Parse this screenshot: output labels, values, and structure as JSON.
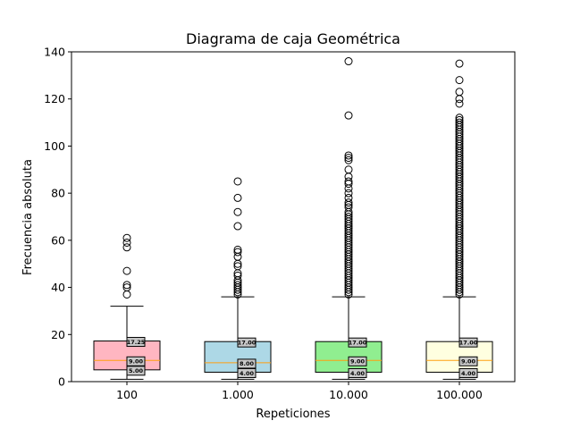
{
  "chart_data": {
    "type": "box",
    "title": "Diagrama de caja Geométrica",
    "xlabel": "Repeticiones",
    "ylabel": "Frecuencia absoluta",
    "ylim": [
      0,
      140
    ],
    "yticks": [
      0,
      20,
      40,
      60,
      80,
      100,
      120,
      140
    ],
    "grid": false,
    "categories": [
      "100",
      "1.000",
      "10.000",
      "100.000"
    ],
    "box_colors": [
      "#ffb6c1",
      "#add8e6",
      "#90ee90",
      "#ffffe0"
    ],
    "median_color": "#ff9f0f",
    "boxes": [
      {
        "q1": 5.0,
        "median": 9.0,
        "q3": 17.25,
        "whisker_low": 1,
        "whisker_high": 32,
        "q1_label": "5.00",
        "median_label": "9.00",
        "q3_label": "17.25",
        "outliers": [
          37,
          40,
          41,
          47,
          57,
          59,
          61
        ]
      },
      {
        "q1": 4.0,
        "median": 8.0,
        "q3": 17.0,
        "whisker_low": 1,
        "whisker_high": 36,
        "q1_label": "4.00",
        "median_label": "8.00",
        "q3_label": "17.00",
        "outliers": [
          37,
          38,
          39,
          40,
          41,
          42,
          43,
          45,
          46,
          49,
          50,
          53,
          55,
          56,
          66,
          72,
          78,
          85
        ]
      },
      {
        "q1": 4.0,
        "median": 9.0,
        "q3": 17.0,
        "whisker_low": 1,
        "whisker_high": 36,
        "q1_label": "4.00",
        "median_label": "9.00",
        "q3_label": "17.00",
        "outliers": [
          37,
          38,
          39,
          40,
          41,
          42,
          43,
          44,
          45,
          46,
          47,
          48,
          49,
          50,
          51,
          52,
          53,
          54,
          55,
          56,
          57,
          58,
          59,
          60,
          61,
          62,
          63,
          64,
          65,
          66,
          67,
          68,
          69,
          70,
          71,
          72,
          74,
          75,
          76,
          78,
          80,
          82,
          84,
          85,
          87,
          90,
          94,
          95,
          96,
          113,
          136
        ]
      },
      {
        "q1": 4.0,
        "median": 9.0,
        "q3": 17.0,
        "whisker_low": 1,
        "whisker_high": 36,
        "q1_label": "4.00",
        "median_label": "9.00",
        "q3_label": "17.00",
        "outliers": [
          37,
          38,
          39,
          40,
          41,
          42,
          43,
          44,
          45,
          46,
          47,
          48,
          49,
          50,
          51,
          52,
          53,
          54,
          55,
          56,
          57,
          58,
          59,
          60,
          61,
          62,
          63,
          64,
          65,
          66,
          67,
          68,
          69,
          70,
          71,
          72,
          73,
          74,
          75,
          76,
          77,
          78,
          79,
          80,
          81,
          82,
          83,
          84,
          85,
          86,
          87,
          88,
          89,
          90,
          91,
          92,
          93,
          94,
          95,
          96,
          97,
          98,
          99,
          100,
          101,
          102,
          103,
          104,
          105,
          106,
          107,
          108,
          109,
          110,
          111,
          112,
          118,
          120,
          123,
          128,
          135
        ]
      }
    ]
  }
}
